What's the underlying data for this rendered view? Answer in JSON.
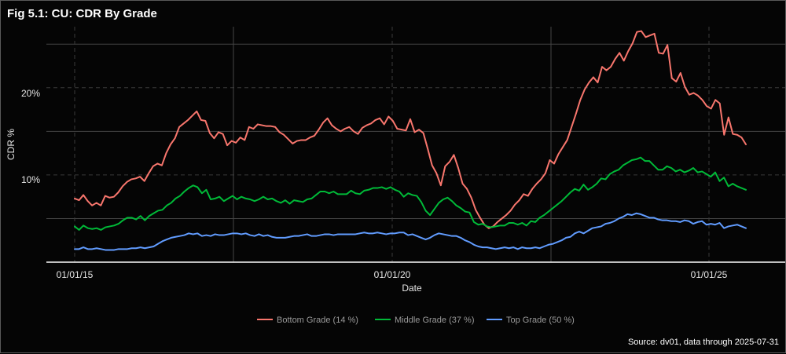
{
  "chart_data": {
    "type": "line",
    "title": "Fig 5.1: CU: CDR By Grade",
    "xlabel": "Date",
    "ylabel": "CDR %",
    "caption": "Source: dv01, data through 2025-07-31",
    "x_ticks": [
      "01/01/15",
      "01/01/20",
      "01/01/25"
    ],
    "y_ticks": [
      "10%",
      "20%"
    ],
    "ylim": [
      0,
      27
    ],
    "x_start": "2015-01",
    "x_end": "2025-07",
    "grid": true,
    "legend_position": "bottom",
    "series": [
      {
        "name": "Bottom Grade (14 %)",
        "color": "#F8766D",
        "values": [
          7.3,
          7.1,
          7.7,
          7.0,
          6.5,
          6.8,
          6.5,
          7.6,
          7.4,
          7.5,
          8.0,
          8.7,
          9.2,
          9.5,
          9.6,
          9.8,
          9.3,
          10.2,
          11.0,
          11.3,
          11.1,
          12.5,
          13.5,
          14.2,
          15.5,
          15.9,
          16.3,
          16.8,
          17.3,
          16.3,
          16.2,
          14.8,
          14.2,
          14.9,
          14.7,
          13.4,
          13.9,
          13.7,
          14.3,
          14.0,
          15.5,
          15.3,
          15.8,
          15.7,
          15.6,
          15.6,
          15.5,
          14.9,
          14.6,
          14.1,
          13.6,
          13.9,
          14.0,
          14.0,
          14.3,
          14.5,
          15.2,
          16.0,
          16.5,
          15.7,
          15.3,
          15.0,
          15.3,
          15.5,
          15.0,
          14.7,
          15.4,
          15.7,
          15.9,
          16.3,
          16.5,
          15.8,
          16.7,
          16.2,
          15.3,
          15.2,
          15.1,
          16.4,
          14.9,
          15.2,
          14.8,
          13.0,
          11.1,
          10.2,
          8.8,
          11.0,
          11.5,
          12.3,
          10.8,
          9.0,
          8.4,
          7.4,
          6.0,
          5.1,
          4.3,
          3.9,
          4.1,
          4.6,
          5.0,
          5.4,
          5.9,
          6.6,
          7.1,
          7.8,
          7.6,
          8.4,
          9.0,
          9.5,
          10.2,
          11.7,
          11.3,
          12.4,
          13.2,
          14.0,
          15.5,
          17.0,
          18.6,
          19.8,
          20.6,
          21.2,
          20.6,
          22.4,
          22.0,
          22.4,
          23.3,
          24.0,
          23.1,
          24.2,
          25.1,
          26.4,
          26.5,
          25.8,
          26.0,
          26.2,
          24.0,
          23.9,
          24.9,
          21.1,
          20.7,
          21.7,
          20.1,
          19.2,
          19.4,
          19.1,
          18.6,
          17.9,
          17.6,
          18.6,
          18.2,
          14.6,
          16.6,
          14.7,
          14.6,
          14.3,
          13.5
        ]
      },
      {
        "name": "Middle Grade (37 %)",
        "color": "#00BA38",
        "values": [
          4.1,
          3.7,
          4.2,
          3.9,
          3.8,
          3.9,
          3.7,
          4.0,
          4.1,
          4.2,
          4.4,
          4.8,
          5.1,
          5.1,
          4.9,
          5.3,
          4.8,
          5.3,
          5.6,
          5.9,
          6.0,
          6.5,
          6.8,
          7.3,
          7.6,
          8.1,
          8.5,
          8.8,
          8.6,
          7.9,
          8.3,
          7.2,
          7.3,
          7.5,
          7.0,
          7.3,
          7.6,
          7.2,
          7.5,
          7.3,
          7.2,
          7.0,
          7.2,
          7.5,
          7.2,
          7.3,
          7.0,
          6.8,
          7.1,
          6.7,
          7.1,
          7.0,
          6.9,
          7.2,
          7.3,
          7.7,
          8.1,
          8.1,
          7.9,
          8.1,
          7.8,
          7.8,
          7.8,
          8.2,
          7.9,
          7.8,
          8.2,
          8.3,
          8.5,
          8.5,
          8.6,
          8.4,
          8.6,
          8.3,
          8.1,
          7.5,
          7.9,
          7.7,
          7.6,
          6.9,
          5.9,
          5.4,
          6.1,
          6.8,
          7.2,
          7.4,
          7.0,
          6.5,
          6.2,
          5.8,
          5.7,
          4.6,
          4.3,
          4.4,
          4.1,
          4.0,
          4.1,
          4.2,
          4.2,
          4.5,
          4.5,
          4.3,
          4.5,
          4.2,
          4.7,
          4.6,
          5.1,
          5.4,
          5.8,
          6.2,
          6.6,
          7.0,
          7.5,
          8.0,
          8.4,
          8.2,
          8.9,
          8.3,
          8.6,
          9.0,
          9.6,
          9.5,
          10.1,
          10.4,
          10.6,
          11.1,
          11.4,
          11.7,
          11.8,
          12.0,
          11.6,
          11.6,
          11.1,
          10.6,
          10.6,
          11.0,
          10.8,
          10.4,
          10.6,
          10.3,
          10.5,
          10.8,
          10.3,
          10.4,
          10.1,
          9.8,
          10.3,
          9.3,
          9.7,
          8.7,
          9.0,
          8.7,
          8.5,
          8.3
        ]
      },
      {
        "name": "Top Grade (50 %)",
        "color": "#619CFF",
        "values": [
          1.5,
          1.5,
          1.7,
          1.5,
          1.5,
          1.6,
          1.5,
          1.4,
          1.4,
          1.4,
          1.5,
          1.5,
          1.5,
          1.6,
          1.6,
          1.7,
          1.6,
          1.7,
          1.8,
          2.1,
          2.4,
          2.6,
          2.8,
          2.9,
          3.0,
          3.1,
          3.3,
          3.2,
          3.3,
          3.0,
          3.1,
          3.0,
          3.2,
          3.1,
          3.1,
          3.2,
          3.3,
          3.3,
          3.2,
          3.3,
          3.1,
          3.0,
          3.2,
          3.0,
          3.1,
          2.9,
          2.8,
          2.8,
          2.8,
          2.9,
          3.0,
          3.0,
          3.1,
          3.2,
          3.0,
          3.0,
          3.1,
          3.2,
          3.2,
          3.1,
          3.2,
          3.2,
          3.2,
          3.2,
          3.2,
          3.3,
          3.4,
          3.3,
          3.3,
          3.4,
          3.3,
          3.2,
          3.3,
          3.3,
          3.4,
          3.4,
          3.1,
          3.2,
          3.0,
          2.8,
          2.6,
          2.8,
          3.1,
          3.3,
          3.2,
          3.1,
          3.0,
          3.0,
          2.8,
          2.5,
          2.3,
          2.0,
          1.8,
          1.7,
          1.7,
          1.6,
          1.5,
          1.6,
          1.7,
          1.6,
          1.7,
          1.5,
          1.7,
          1.6,
          1.6,
          1.7,
          1.6,
          1.8,
          2.0,
          2.1,
          2.3,
          2.5,
          2.8,
          2.9,
          3.3,
          3.5,
          3.3,
          3.6,
          3.9,
          4.0,
          4.1,
          4.4,
          4.5,
          4.7,
          5.0,
          5.2,
          5.5,
          5.4,
          5.6,
          5.5,
          5.3,
          5.1,
          5.1,
          4.9,
          4.8,
          4.8,
          4.7,
          4.7,
          4.6,
          4.8,
          4.7,
          4.4,
          4.6,
          4.7,
          4.3,
          4.4,
          4.3,
          4.5,
          3.9,
          4.1,
          4.2,
          4.3,
          4.1,
          3.9
        ]
      }
    ]
  }
}
